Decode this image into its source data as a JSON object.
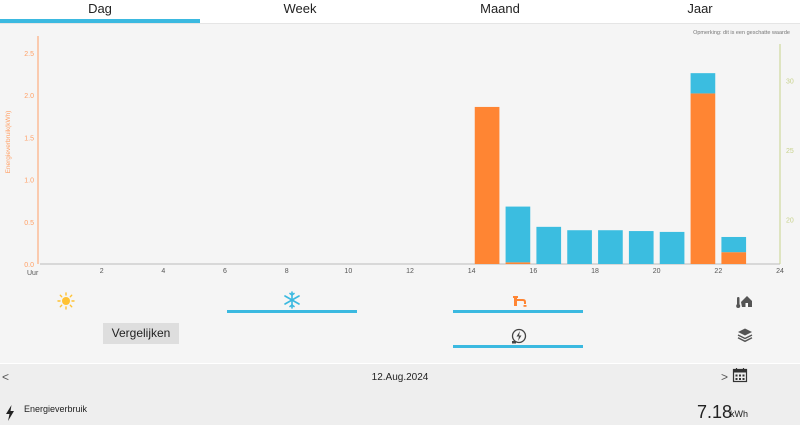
{
  "tabs": [
    {
      "label": "Dag",
      "active": true
    },
    {
      "label": "Week",
      "active": false
    },
    {
      "label": "Maand",
      "active": false
    },
    {
      "label": "Jaar",
      "active": false
    }
  ],
  "note": "Opmerking: dit is een geschatte waarde",
  "chart_data": {
    "type": "bar",
    "stacked": true,
    "ylabel": "Energieverbruik(kWh)",
    "xunit": "Uur",
    "ylim": [
      0,
      2.7
    ],
    "yticks": [
      "0.0",
      "0.5",
      "1.0",
      "1.5",
      "2.0",
      "2.5"
    ],
    "y2ticks": [
      "20",
      "25",
      "30"
    ],
    "y2lim": [
      16.8,
      33.2
    ],
    "xticks": [
      "2",
      "4",
      "6",
      "8",
      "10",
      "12",
      "14",
      "16",
      "18",
      "20",
      "22",
      "24"
    ],
    "xlim": [
      0,
      24
    ],
    "hours": [
      15,
      16,
      17,
      18,
      19,
      20,
      21,
      22,
      23
    ],
    "series": [
      {
        "color": "#ff8533",
        "values": [
          1.86,
          0.02,
          0,
          0,
          0,
          0,
          0,
          2.02,
          0.14
        ]
      },
      {
        "color": "#3bbde0",
        "values": [
          0,
          0.66,
          0.44,
          0.4,
          0.4,
          0.39,
          0.38,
          0.24,
          0.18
        ]
      }
    ],
    "colors": {
      "axis_left": "#ffa066",
      "axis_right": "#c8d28c",
      "grid": "#e0e0e0"
    }
  },
  "icons": {
    "sun": "sun-icon",
    "snowflake": "snowflake-icon",
    "tap": "water-tap-icon",
    "house": "house-temperature-icon",
    "plug": "energy-meter-icon",
    "stack": "layers-icon"
  },
  "compare_label": "Vergelijken",
  "date": "12.Aug.2024",
  "nav": {
    "prev": "<",
    "next": ">"
  },
  "footer": {
    "label": "Energieverbruik",
    "total": "7.18",
    "unit": "kWh"
  },
  "accent": "#3bb9e0"
}
